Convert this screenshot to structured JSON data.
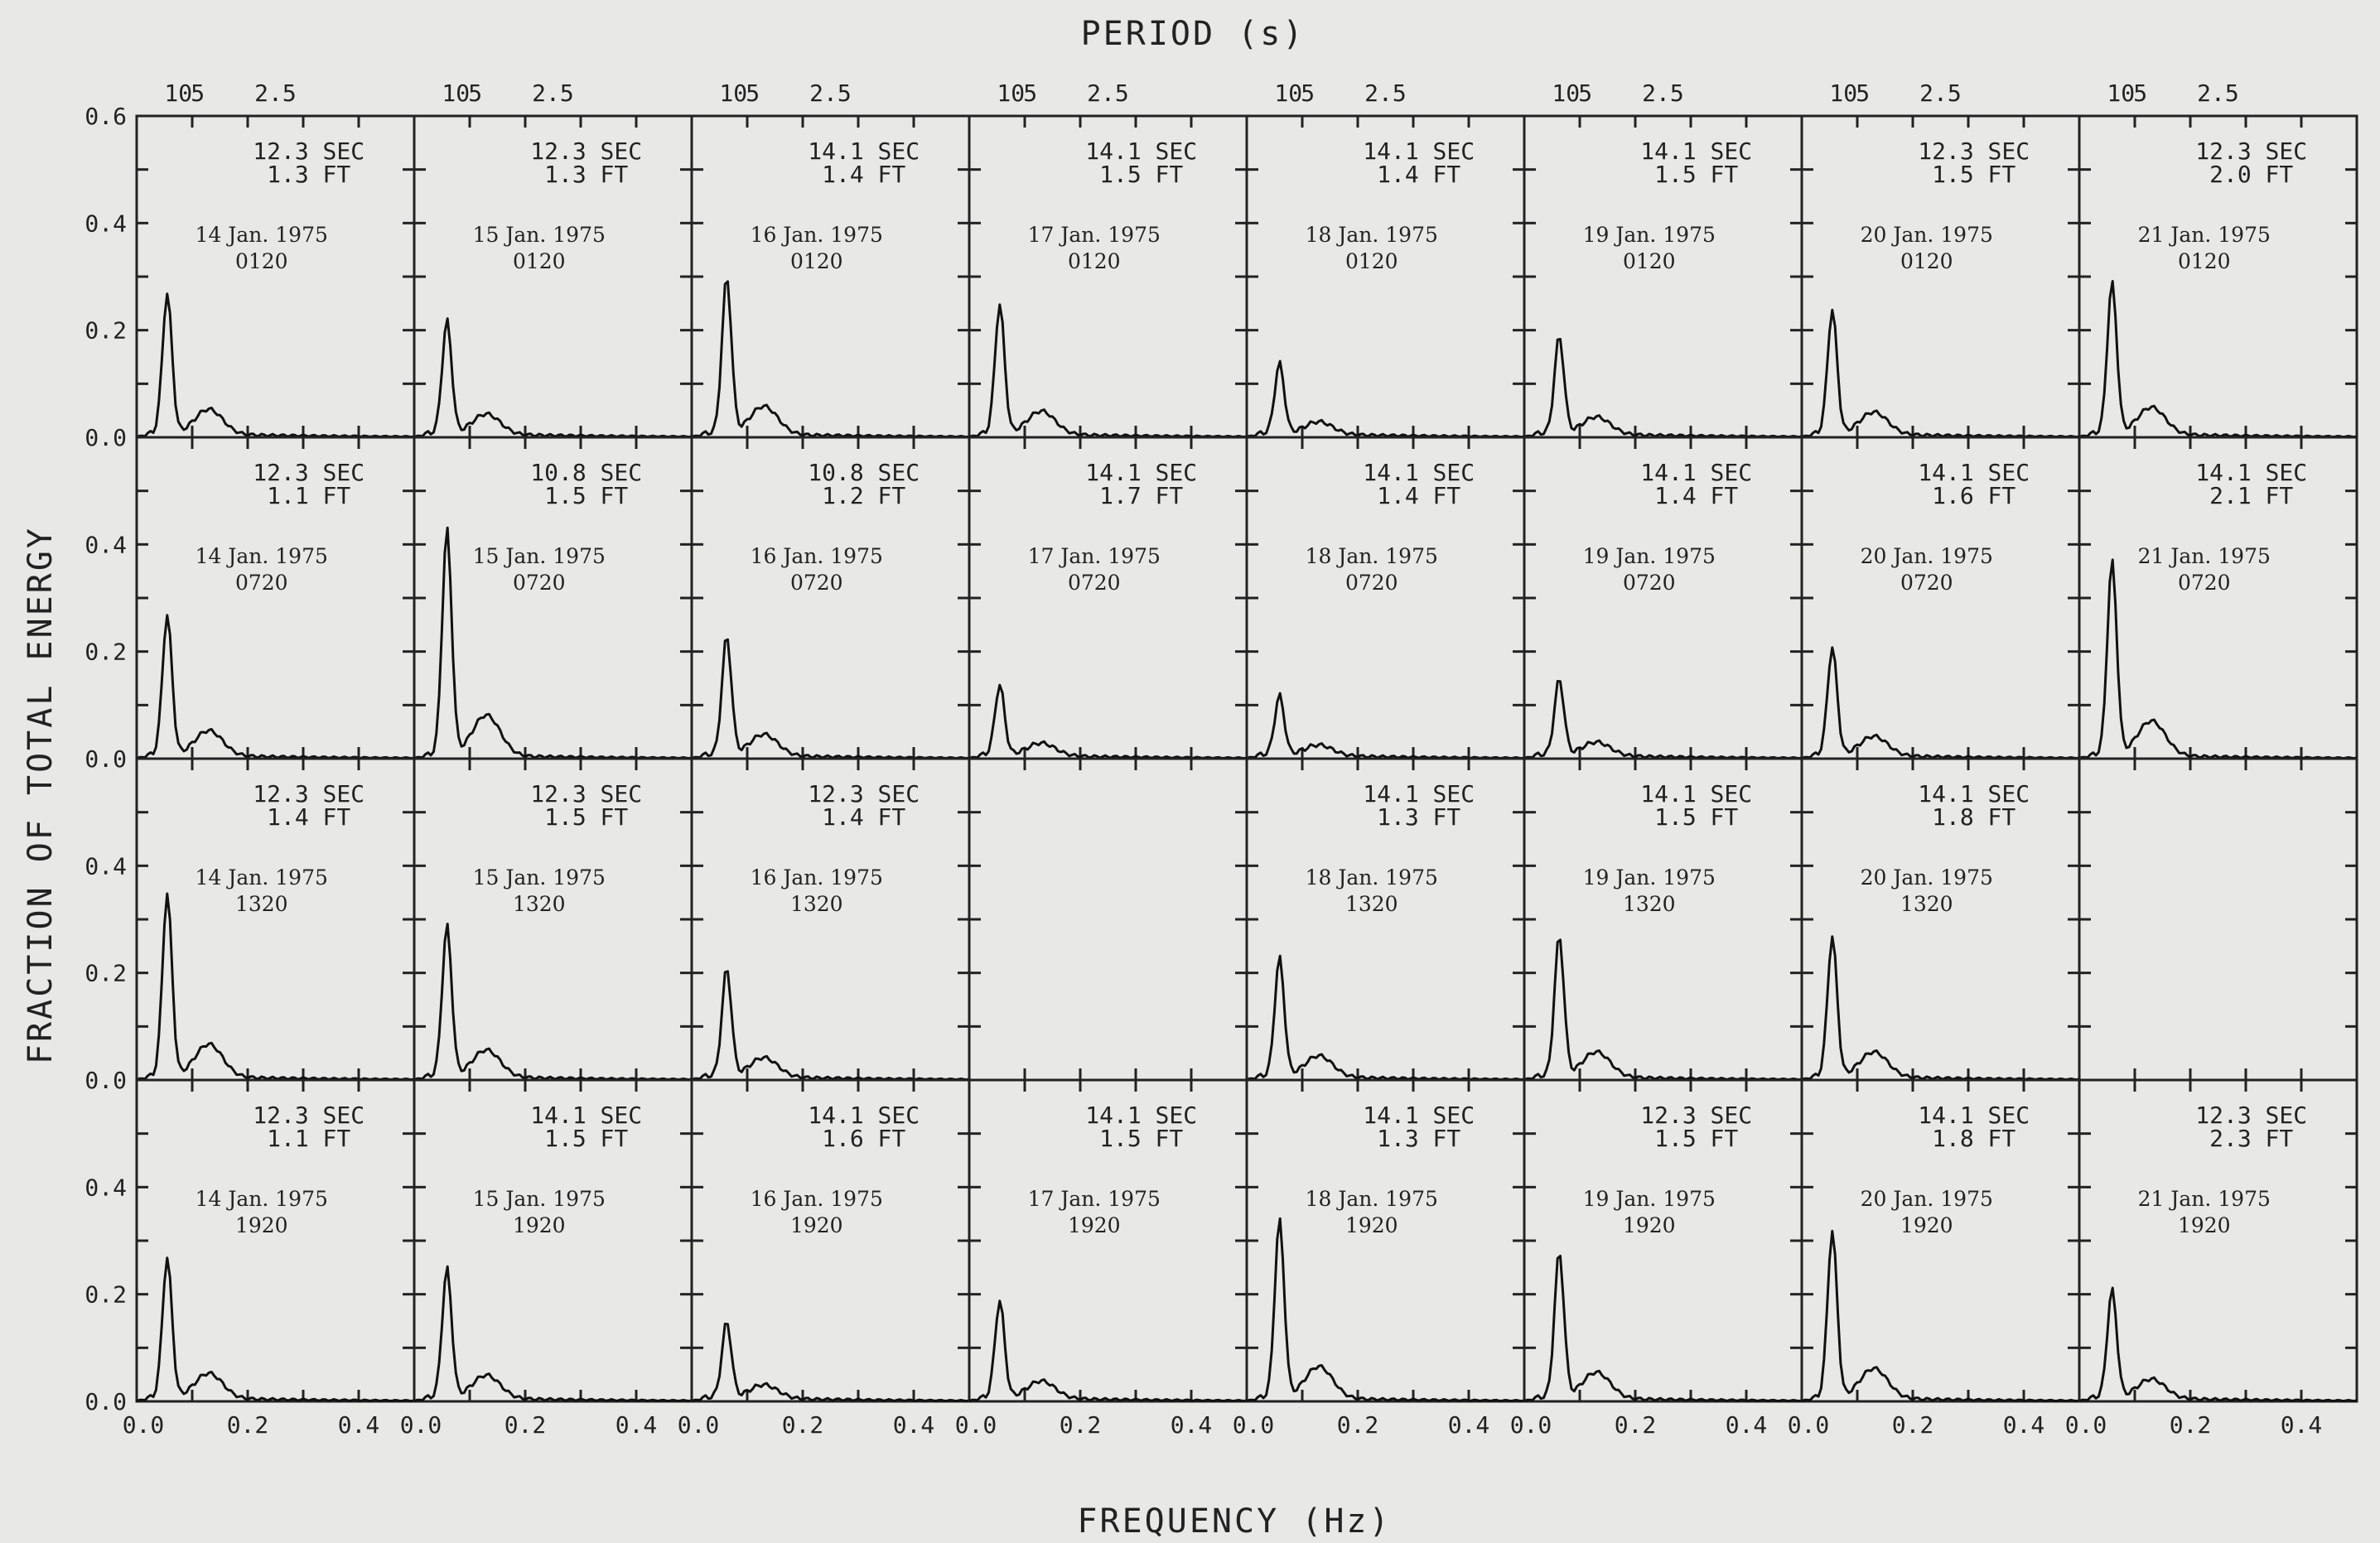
{
  "chart_data": {
    "type": "line",
    "title": "",
    "top_axis_label": "PERIOD (s)",
    "xlabel": "FREQUENCY (Hz)",
    "ylabel": "FRACTION OF TOTAL ENERGY",
    "xlim": [
      0,
      0.5
    ],
    "ylim": [
      0,
      0.6
    ],
    "x_tick_labels": [
      "0.0",
      "0.2",
      "0.4"
    ],
    "y_tick_labels": [
      "0.0",
      "0.2",
      "0.4",
      "0.6"
    ],
    "period_tick_labels": [
      "10",
      "5",
      "2.5"
    ],
    "rows": [
      "0120",
      "0720",
      "1320",
      "1920"
    ],
    "panels": [
      {
        "row": 0,
        "col": 0,
        "period": "12.3 SEC",
        "height": "1.3 FT",
        "date": "14 Jan. 1975",
        "time": "0120",
        "peak": 0.26
      },
      {
        "row": 0,
        "col": 1,
        "period": "12.3 SEC",
        "height": "1.3 FT",
        "date": "15 Jan. 1975",
        "time": "0120",
        "peak": 0.21
      },
      {
        "row": 0,
        "col": 2,
        "period": "14.1 SEC",
        "height": "1.4 FT",
        "date": "16 Jan. 1975",
        "time": "0120",
        "peak": 0.29
      },
      {
        "row": 0,
        "col": 3,
        "period": "14.1 SEC",
        "height": "1.5 FT",
        "date": "17 Jan. 1975",
        "time": "0120",
        "peak": 0.24
      },
      {
        "row": 0,
        "col": 4,
        "period": "14.1 SEC",
        "height": "1.4 FT",
        "date": "18 Jan. 1975",
        "time": "0120",
        "peak": 0.13
      },
      {
        "row": 0,
        "col": 5,
        "period": "14.1 SEC",
        "height": "1.5 FT",
        "date": "19 Jan. 1975",
        "time": "0120",
        "peak": 0.18
      },
      {
        "row": 0,
        "col": 6,
        "period": "12.3 SEC",
        "height": "1.5 FT",
        "date": "20 Jan. 1975",
        "time": "0120",
        "peak": 0.23
      },
      {
        "row": 0,
        "col": 7,
        "period": "12.3 SEC",
        "height": "2.0 FT",
        "date": "21 Jan. 1975",
        "time": "0120",
        "peak": 0.28
      },
      {
        "row": 1,
        "col": 0,
        "period": "12.3 SEC",
        "height": "1.1 FT",
        "date": "14 Jan. 1975",
        "time": "0720",
        "peak": 0.26
      },
      {
        "row": 1,
        "col": 1,
        "period": "10.8 SEC",
        "height": "1.5 FT",
        "date": "15 Jan. 1975",
        "time": "0720",
        "peak": 0.42
      },
      {
        "row": 1,
        "col": 2,
        "period": "10.8 SEC",
        "height": "1.2 FT",
        "date": "16 Jan. 1975",
        "time": "0720",
        "peak": 0.22
      },
      {
        "row": 1,
        "col": 3,
        "period": "14.1 SEC",
        "height": "1.7 FT",
        "date": "17 Jan. 1975",
        "time": "0720",
        "peak": 0.13
      },
      {
        "row": 1,
        "col": 4,
        "period": "14.1 SEC",
        "height": "1.4 FT",
        "date": "18 Jan. 1975",
        "time": "0720",
        "peak": 0.11
      },
      {
        "row": 1,
        "col": 5,
        "period": "14.1 SEC",
        "height": "1.4 FT",
        "date": "19 Jan. 1975",
        "time": "0720",
        "peak": 0.14
      },
      {
        "row": 1,
        "col": 6,
        "period": "14.1 SEC",
        "height": "1.6 FT",
        "date": "20 Jan. 1975",
        "time": "0720",
        "peak": 0.2
      },
      {
        "row": 1,
        "col": 7,
        "period": "14.1 SEC",
        "height": "2.1 FT",
        "date": "21 Jan. 1975",
        "time": "0720",
        "peak": 0.36
      },
      {
        "row": 2,
        "col": 0,
        "period": "12.3 SEC",
        "height": "1.4 FT",
        "date": "14 Jan. 1975",
        "time": "1320",
        "peak": 0.34
      },
      {
        "row": 2,
        "col": 1,
        "period": "12.3 SEC",
        "height": "1.5 FT",
        "date": "15 Jan. 1975",
        "time": "1320",
        "peak": 0.28
      },
      {
        "row": 2,
        "col": 2,
        "period": "12.3 SEC",
        "height": "1.4 FT",
        "date": "16 Jan. 1975",
        "time": "1320",
        "peak": 0.2
      },
      {
        "row": 2,
        "col": 3,
        "period": "",
        "height": "",
        "date": "",
        "time": "",
        "peak": 0
      },
      {
        "row": 2,
        "col": 4,
        "period": "14.1 SEC",
        "height": "1.3 FT",
        "date": "18 Jan. 1975",
        "time": "1320",
        "peak": 0.22
      },
      {
        "row": 2,
        "col": 5,
        "period": "14.1 SEC",
        "height": "1.5 FT",
        "date": "19 Jan. 1975",
        "time": "1320",
        "peak": 0.26
      },
      {
        "row": 2,
        "col": 6,
        "period": "14.1 SEC",
        "height": "1.8 FT",
        "date": "20 Jan. 1975",
        "time": "1320",
        "peak": 0.26
      },
      {
        "row": 2,
        "col": 7,
        "period": "",
        "height": "",
        "date": "",
        "time": "",
        "peak": 0
      },
      {
        "row": 3,
        "col": 0,
        "period": "12.3 SEC",
        "height": "1.1 FT",
        "date": "14 Jan. 1975",
        "time": "1920",
        "peak": 0.26
      },
      {
        "row": 3,
        "col": 1,
        "period": "14.1 SEC",
        "height": "1.5 FT",
        "date": "15 Jan. 1975",
        "time": "1920",
        "peak": 0.24
      },
      {
        "row": 3,
        "col": 2,
        "period": "14.1 SEC",
        "height": "1.6 FT",
        "date": "16 Jan. 1975",
        "time": "1920",
        "peak": 0.14
      },
      {
        "row": 3,
        "col": 3,
        "period": "14.1 SEC",
        "height": "1.5 FT",
        "date": "17 Jan. 1975",
        "time": "1920",
        "peak": 0.18
      },
      {
        "row": 3,
        "col": 4,
        "period": "14.1 SEC",
        "height": "1.3 FT",
        "date": "18 Jan. 1975",
        "time": "1920",
        "peak": 0.33
      },
      {
        "row": 3,
        "col": 5,
        "period": "12.3 SEC",
        "height": "1.5 FT",
        "date": "19 Jan. 1975",
        "time": "1920",
        "peak": 0.27
      },
      {
        "row": 3,
        "col": 6,
        "period": "14.1 SEC",
        "height": "1.8 FT",
        "date": "20 Jan. 1975",
        "time": "1920",
        "peak": 0.31
      },
      {
        "row": 3,
        "col": 7,
        "period": "12.3 SEC",
        "height": "2.3 FT",
        "date": "21 Jan. 1975",
        "time": "1920",
        "peak": 0.2
      }
    ]
  }
}
